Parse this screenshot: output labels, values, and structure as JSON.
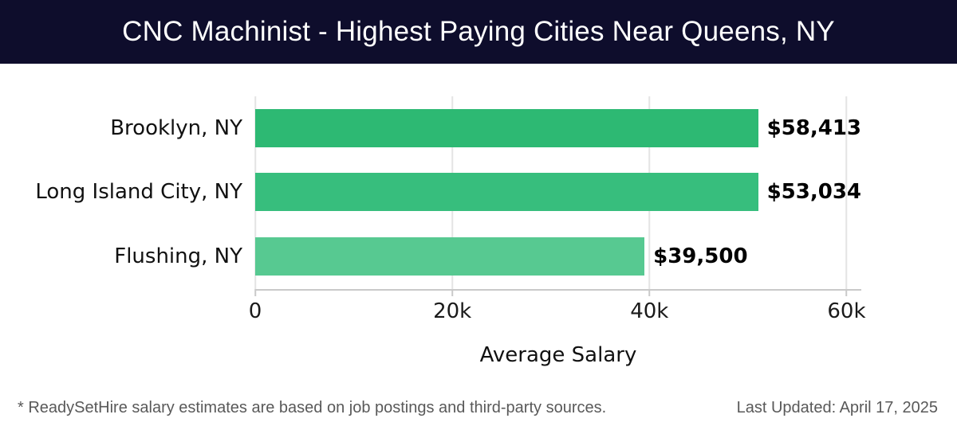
{
  "header": {
    "title": "CNC Machinist - Highest Paying Cities Near Queens, NY",
    "bg_color": "#0e0d2c",
    "text_color": "#ffffff"
  },
  "chart_data": {
    "type": "bar",
    "orientation": "horizontal",
    "title": "CNC Machinist - Highest Paying Cities Near Queens, NY",
    "categories": [
      "Brooklyn, NY",
      "Long Island City, NY",
      "Flushing, NY"
    ],
    "values": [
      58413,
      53034,
      39500
    ],
    "value_labels": [
      "$58,413",
      "$53,034",
      "$39,500"
    ],
    "bar_colors": [
      "#2db973",
      "#37be7d",
      "#57c991"
    ],
    "xlabel": "Average Salary",
    "ylabel": "",
    "xlim": [
      0,
      61500
    ],
    "xticks": [
      {
        "value": 0,
        "label": "0"
      },
      {
        "value": 20000,
        "label": "20k"
      },
      {
        "value": 40000,
        "label": "40k"
      },
      {
        "value": 60000,
        "label": "60k"
      }
    ],
    "grid": "vertical-light",
    "legend": "none"
  },
  "footer": {
    "disclaimer": "* ReadySetHire salary estimates are based on job postings and third-party sources.",
    "last_updated": "Last Updated: April 17, 2025"
  }
}
